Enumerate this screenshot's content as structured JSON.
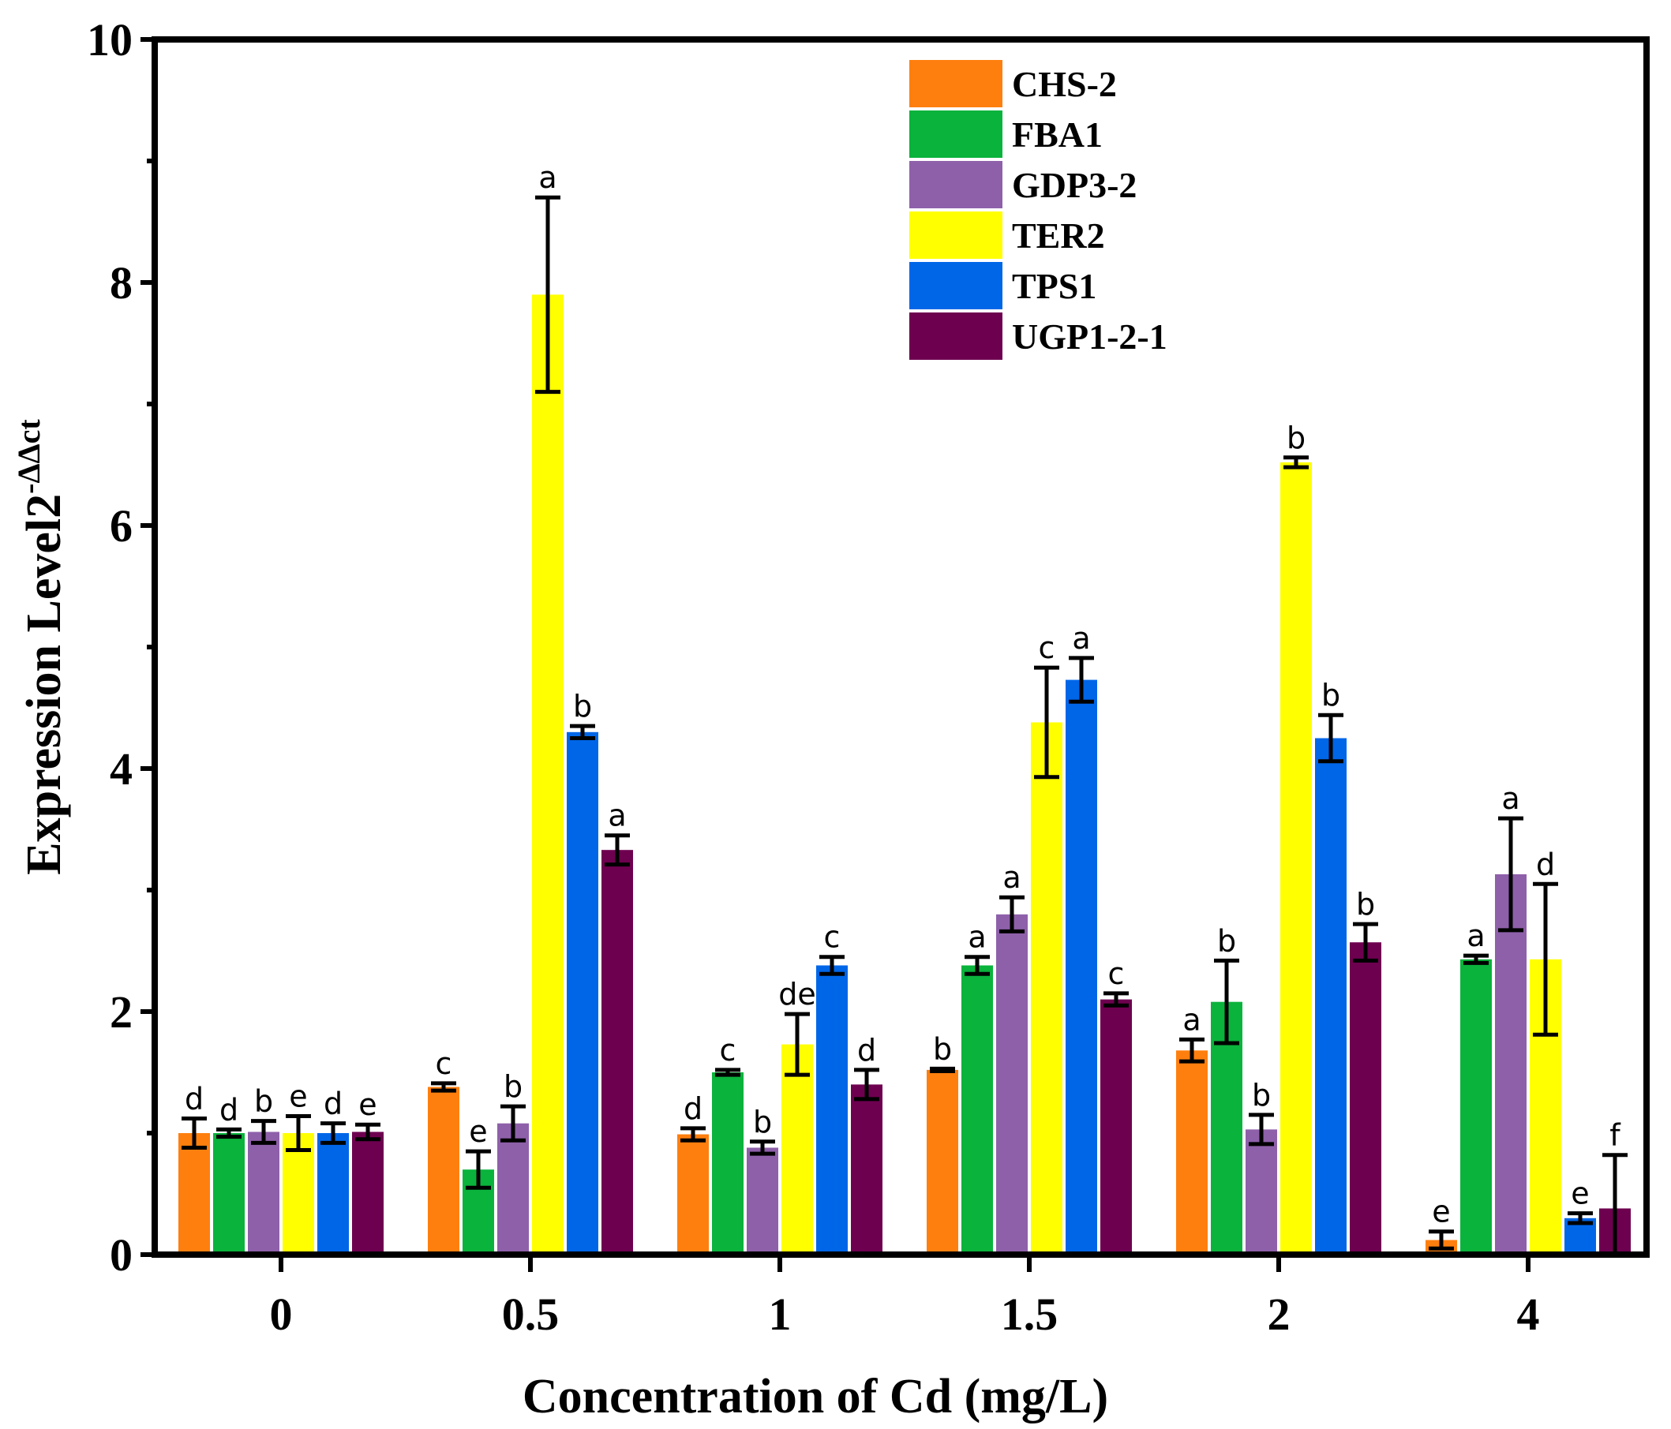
{
  "chart_data": {
    "type": "bar",
    "xlabel": "Concentration of Cd (mg/L)",
    "ylabel": "Expression Level",
    "ylabel_base": "2",
    "ylabel_exponent": "-ΔΔct",
    "ylim": [
      0,
      10
    ],
    "yticks": [
      "0",
      "2",
      "4",
      "6",
      "8",
      "10"
    ],
    "categories": [
      "0",
      "0.5",
      "1",
      "1.5",
      "2",
      "4"
    ],
    "legend_position": "top-center",
    "grid": false,
    "series": [
      {
        "name": "CHS-2",
        "color": "#ff7f0e",
        "values": [
          1.0,
          1.38,
          0.99,
          1.52,
          1.68,
          0.12
        ],
        "errors": [
          0.12,
          0.03,
          0.05,
          0.01,
          0.09,
          0.07
        ],
        "labels": [
          "d",
          "c",
          "d",
          "b",
          "a",
          "e"
        ]
      },
      {
        "name": "FBA1",
        "color": "#0ab33c",
        "values": [
          1.0,
          0.7,
          1.5,
          2.38,
          2.08,
          2.43
        ],
        "errors": [
          0.03,
          0.15,
          0.02,
          0.07,
          0.34,
          0.03
        ],
        "labels": [
          "d",
          "e",
          "c",
          "a",
          "b",
          "a"
        ]
      },
      {
        "name": "GDP3-2",
        "color": "#8e60aa",
        "values": [
          1.01,
          1.08,
          0.88,
          2.8,
          1.03,
          3.13
        ],
        "errors": [
          0.09,
          0.14,
          0.05,
          0.14,
          0.12,
          0.46
        ],
        "labels": [
          "b",
          "b",
          "b",
          "a",
          "b",
          "a"
        ]
      },
      {
        "name": "TER2",
        "color": "#ffff00",
        "values": [
          1.0,
          7.9,
          1.73,
          4.38,
          6.52,
          2.43
        ],
        "errors": [
          0.14,
          0.8,
          0.25,
          0.45,
          0.04,
          0.62
        ],
        "labels": [
          "e",
          "a",
          "de",
          "c",
          "b",
          "d"
        ]
      },
      {
        "name": "TPS1",
        "color": "#0066e8",
        "values": [
          1.0,
          4.3,
          2.38,
          4.73,
          4.25,
          0.3
        ],
        "errors": [
          0.08,
          0.05,
          0.07,
          0.18,
          0.19,
          0.04
        ],
        "labels": [
          "d",
          "b",
          "c",
          "a",
          "b",
          "e"
        ]
      },
      {
        "name": "UGP1-2-1",
        "color": "#6e0050",
        "values": [
          1.01,
          3.33,
          1.4,
          2.1,
          2.57,
          0.38
        ],
        "errors": [
          0.06,
          0.12,
          0.12,
          0.05,
          0.15,
          0.44
        ],
        "labels": [
          "e",
          "a",
          "d",
          "c",
          "b",
          "f"
        ]
      }
    ]
  }
}
